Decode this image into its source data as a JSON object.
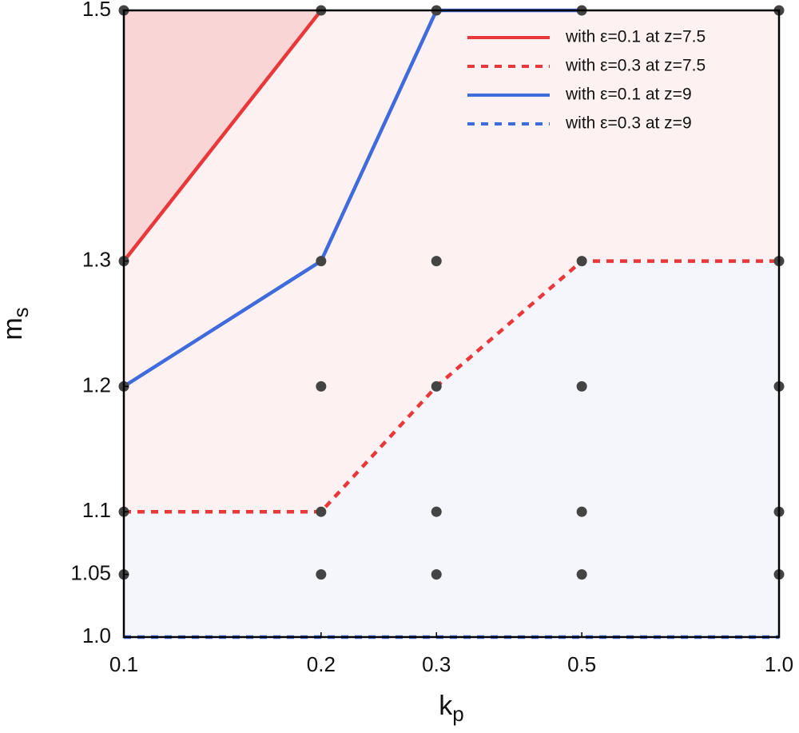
{
  "chart_data": {
    "type": "line",
    "xlabel": [
      "k",
      "p"
    ],
    "ylabel": [
      "m",
      "s"
    ],
    "xscale": "log",
    "xlim": [
      0.1,
      1
    ],
    "xticks": [
      0.1,
      0.2,
      0.3,
      0.5,
      {
        "value": 1,
        "label": "1.0"
      }
    ],
    "ylim": [
      1,
      1.5
    ],
    "yticks": [
      {
        "value": 1,
        "label": "1.0"
      },
      1.05,
      1.1,
      1.2,
      1.3,
      1.5
    ],
    "legend": "upper right",
    "series": [
      {
        "name": "with ε=0.1 at z=7.5",
        "color": "#e8383b",
        "style": "solid",
        "fill": "#f9d5d5",
        "x": [
          0.1,
          0.2
        ],
        "values": [
          1.3,
          1.5
        ]
      },
      {
        "name": "with ε=0.3 at z=7.5",
        "color": "#e8383b",
        "style": "dashed",
        "fill": "#fdf2f1",
        "x": [
          0.1,
          0.2,
          0.3,
          0.5,
          1
        ],
        "values": [
          1.1,
          1.1,
          1.2,
          1.3,
          1.3
        ]
      },
      {
        "name": "with ε=0.1 at z=9",
        "color": "#3f6bdc",
        "style": "solid",
        "fill": "#d7dff6",
        "x": [
          0.1,
          0.2,
          0.3,
          0.5
        ],
        "values": [
          1.2,
          1.3,
          1.5,
          1.5
        ]
      },
      {
        "name": "with ε=0.3 at z=9",
        "color": "#3f6bdc",
        "style": "dashed",
        "fill": "#f4f6fc",
        "x": [
          0.1,
          1
        ],
        "values": [
          1,
          1
        ]
      }
    ],
    "points": {
      "color": "#444444",
      "x": [
        0.1,
        0.2,
        0.3,
        0.5,
        1,
        0.1,
        0.2,
        0.3,
        0.5,
        1,
        0.1,
        0.2,
        0.3,
        0.5,
        1,
        0.1,
        0.2,
        0.3,
        0.5,
        1,
        0.1,
        0.2,
        0.3,
        0.5,
        1
      ],
      "values": [
        1.5,
        1.5,
        1.5,
        1.5,
        1.5,
        1.3,
        1.3,
        1.3,
        1.3,
        1.3,
        1.2,
        1.2,
        1.2,
        1.2,
        1.2,
        1.1,
        1.1,
        1.1,
        1.1,
        1.1,
        1.05,
        1.05,
        1.05,
        1.05,
        1.05
      ]
    }
  }
}
